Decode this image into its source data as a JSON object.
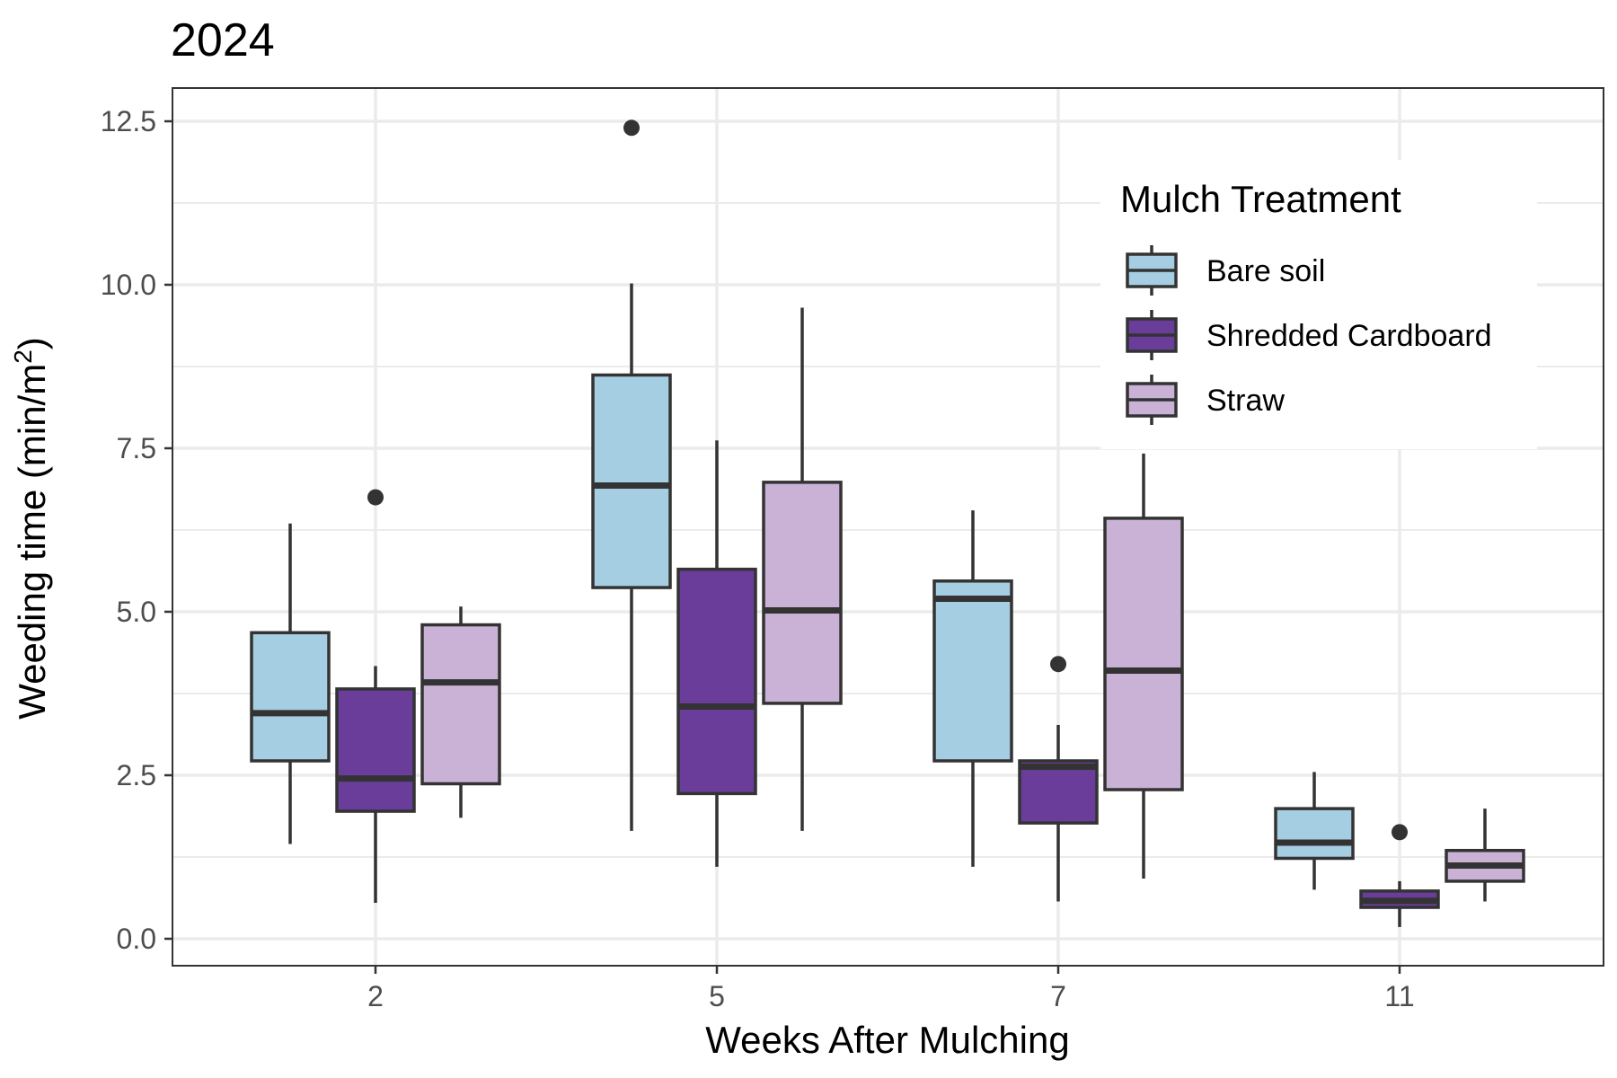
{
  "chart_data": {
    "type": "box",
    "title": "2024",
    "xlabel": "Weeks After Mulching",
    "ylabel": "Weeding time  (min/m",
    "ylabel_superscript": "2",
    "ylabel_close": ")",
    "ylim": [
      -0.4,
      13.0
    ],
    "yticks": [
      0.0,
      2.5,
      5.0,
      7.5,
      10.0,
      12.5
    ],
    "ytick_labels": [
      "0.0",
      "2.5",
      "5.0",
      "7.5",
      "10.0",
      "12.5"
    ],
    "categories": [
      "2",
      "5",
      "7",
      "11"
    ],
    "grid": true,
    "legend": {
      "title": "Mulch Treatment",
      "placement": "top-right"
    },
    "series": [
      {
        "name": "Bare soil",
        "color": "#a6cee3",
        "boxes": [
          {
            "whisker_low": 1.45,
            "q1": 2.72,
            "median": 3.45,
            "q3": 4.68,
            "whisker_high": 6.35,
            "outliers": []
          },
          {
            "whisker_low": 1.65,
            "q1": 5.37,
            "median": 6.93,
            "q3": 8.62,
            "whisker_high": 10.02,
            "outliers": [
              12.4
            ]
          },
          {
            "whisker_low": 1.1,
            "q1": 2.72,
            "median": 5.2,
            "q3": 5.47,
            "whisker_high": 6.55,
            "outliers": []
          },
          {
            "whisker_low": 0.75,
            "q1": 1.23,
            "median": 1.47,
            "q3": 1.99,
            "whisker_high": 2.55,
            "outliers": []
          }
        ]
      },
      {
        "name": "Shredded Cardboard",
        "color": "#6a3d9a",
        "boxes": [
          {
            "whisker_low": 0.55,
            "q1": 1.95,
            "median": 2.45,
            "q3": 3.82,
            "whisker_high": 4.17,
            "outliers": [
              6.75
            ]
          },
          {
            "whisker_low": 1.1,
            "q1": 2.22,
            "median": 3.55,
            "q3": 5.65,
            "whisker_high": 7.62,
            "outliers": []
          },
          {
            "whisker_low": 0.57,
            "q1": 1.77,
            "median": 2.63,
            "q3": 2.72,
            "whisker_high": 3.27,
            "outliers": [
              4.2
            ]
          },
          {
            "whisker_low": 0.18,
            "q1": 0.48,
            "median": 0.58,
            "q3": 0.73,
            "whisker_high": 0.88,
            "outliers": [
              1.63
            ]
          }
        ]
      },
      {
        "name": "Straw",
        "color": "#cab2d6",
        "boxes": [
          {
            "whisker_low": 1.85,
            "q1": 2.37,
            "median": 3.92,
            "q3": 4.8,
            "whisker_high": 5.08,
            "outliers": []
          },
          {
            "whisker_low": 1.65,
            "q1": 3.6,
            "median": 5.02,
            "q3": 6.98,
            "whisker_high": 9.65,
            "outliers": []
          },
          {
            "whisker_low": 0.92,
            "q1": 2.28,
            "median": 4.1,
            "q3": 6.43,
            "whisker_high": 7.42,
            "outliers": []
          },
          {
            "whisker_low": 0.57,
            "q1": 0.88,
            "median": 1.12,
            "q3": 1.35,
            "whisker_high": 1.99,
            "outliers": []
          }
        ]
      }
    ]
  }
}
